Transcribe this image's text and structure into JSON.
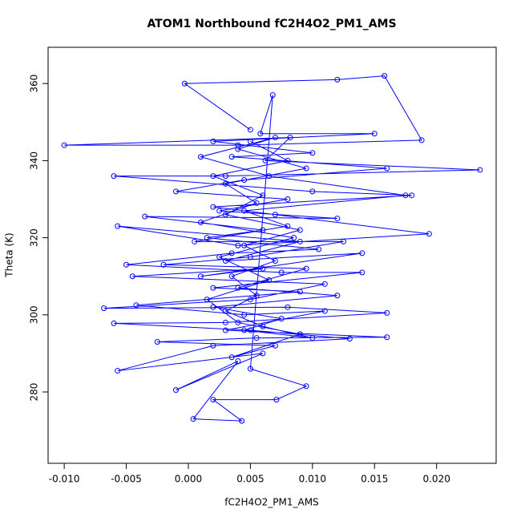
{
  "chart_data": {
    "type": "line",
    "markers": true,
    "color": "#0000ff",
    "title": "ATOM1 Northbound fC2H4O2_PM1_AMS",
    "xlabel": "fC2H4O2_PM1_AMS",
    "ylabel": "Theta (K)",
    "xlim": [
      -0.0113,
      0.0248
    ],
    "ylim": [
      261.5,
      369.4
    ],
    "xticks": [
      {
        "value": -0.01,
        "label": "-0.010"
      },
      {
        "value": -0.005,
        "label": "-0.005"
      },
      {
        "value": 0,
        "label": "0.000"
      },
      {
        "value": 0.005,
        "label": "0.005"
      },
      {
        "value": 0.01,
        "label": "0.010"
      },
      {
        "value": 0.015,
        "label": "0.015"
      },
      {
        "value": 0.02,
        "label": "0.020"
      }
    ],
    "yticks": [
      280,
      300,
      320,
      340,
      360
    ],
    "series": [
      {
        "x": [
          0.005,
          -0.0003,
          0.012,
          0.0158,
          0.0188,
          0.004,
          -0.01,
          0.0082,
          0.0062,
          0.0235,
          0.003,
          -0.006,
          0.01,
          0.018,
          0.002,
          0.007,
          0.0194,
          0.004,
          -0.0057,
          0.009,
          0.003,
          0.014,
          0.001,
          0.006,
          -0.0045,
          0.011,
          0.005,
          -0.0068,
          0.008,
          0.016,
          0.003,
          -0.006,
          0.005,
          0.013,
          0.002,
          -0.0057,
          0.006,
          -0.001,
          0.004,
          0.0004,
          0.0043,
          0.002,
          0.0071,
          0.0095,
          0.005,
          0.0068,
          0.0058,
          0.015,
          0.002,
          0.01,
          0.0035,
          0.016,
          0.0045,
          -0.001,
          0.008,
          0.0025,
          0.012,
          -0.0035,
          0.006,
          0.0015,
          0.0105,
          0.0035,
          -0.005,
          0.0075,
          0.014,
          0.002,
          0.009,
          -0.0042,
          0.0045,
          0.011,
          0.003,
          0.016,
          0.0055,
          -0.0025,
          0.007,
          0.0035,
          0.009,
          0.004,
          0.0015,
          0.0065,
          0.0025,
          0.0085,
          0.001,
          0.0055,
          0.003,
          0.0095,
          0.004,
          0.007,
          0.001,
          0.0065,
          0.0175,
          0.0045,
          0.008,
          0.0005,
          0.0125,
          0.005,
          -0.002,
          0.0095,
          0.004,
          0.012,
          0.002,
          0.0075,
          0.0045,
          0.01,
          0.006,
          0.003,
          0.0055,
          0.0035,
          0.007,
          0.0045,
          0.009,
          0.003,
          0.006,
          0.002,
          0.008,
          0.005
        ],
        "values": [
          348,
          360,
          361,
          362,
          345.3,
          344,
          344,
          346,
          340,
          337.6,
          336,
          336,
          332,
          331,
          328,
          326,
          321,
          318,
          323,
          319,
          314,
          316,
          310,
          312,
          310,
          308,
          304,
          301.7,
          302,
          300.5,
          298,
          297.8,
          296,
          293.8,
          292,
          285.5,
          290,
          280.5,
          288,
          273,
          272.5,
          278,
          278,
          281.5,
          286,
          357,
          347,
          347,
          345,
          342,
          341,
          338,
          335,
          332,
          330,
          327,
          325,
          325.5,
          322,
          320,
          317,
          316,
          313,
          311,
          311,
          307,
          306,
          302.5,
          300,
          301,
          296,
          294.2,
          294,
          293,
          292,
          289,
          295,
          298,
          304,
          309,
          315,
          320,
          324,
          329,
          334,
          338,
          343,
          346,
          341,
          336,
          331,
          327,
          323,
          319,
          319,
          315,
          313,
          312,
          307,
          305,
          302,
          299,
          296,
          294,
          297,
          301,
          305,
          310,
          314,
          318,
          322,
          326,
          331,
          336,
          340,
          345
        ]
      }
    ]
  }
}
